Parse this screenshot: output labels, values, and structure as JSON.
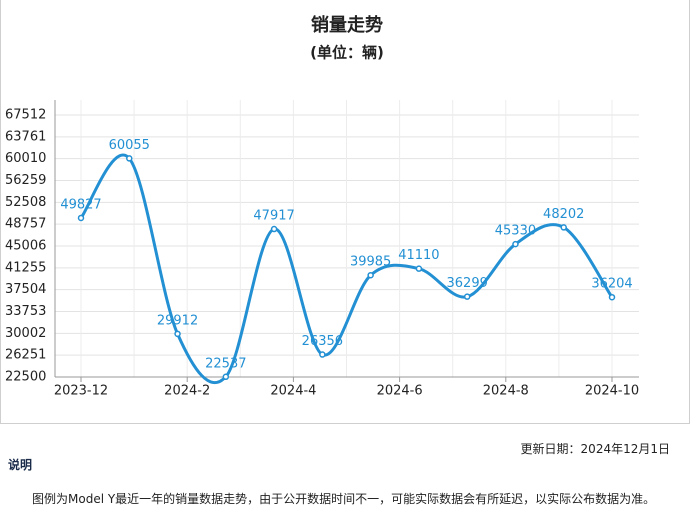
{
  "chart_data": {
    "type": "line",
    "title": "销量走势",
    "subtitle": "(单位：辆)",
    "xtick_labels": [
      "2023-12",
      "2024-2",
      "2024-4",
      "2024-6",
      "2024-8",
      "2024-10"
    ],
    "values": [
      49827,
      60055,
      29912,
      22537,
      47917,
      26356,
      39985,
      41110,
      36299,
      45330,
      48202,
      36204
    ],
    "color": "#2390d3",
    "ylim": [
      22500,
      67512
    ],
    "yticks": [
      22500,
      26251,
      30002,
      33753,
      37504,
      41255,
      45006,
      48757,
      52508,
      56259,
      60010,
      63761,
      67512
    ],
    "grid": true
  },
  "update_text": "更新日期：2024年12月1日",
  "note_title": "说明",
  "note_text": "图例为Model Y最近一年的销量数据走势，由于公开数据时间不一，可能实际数据会有所延迟，以实际公布数据为准。"
}
